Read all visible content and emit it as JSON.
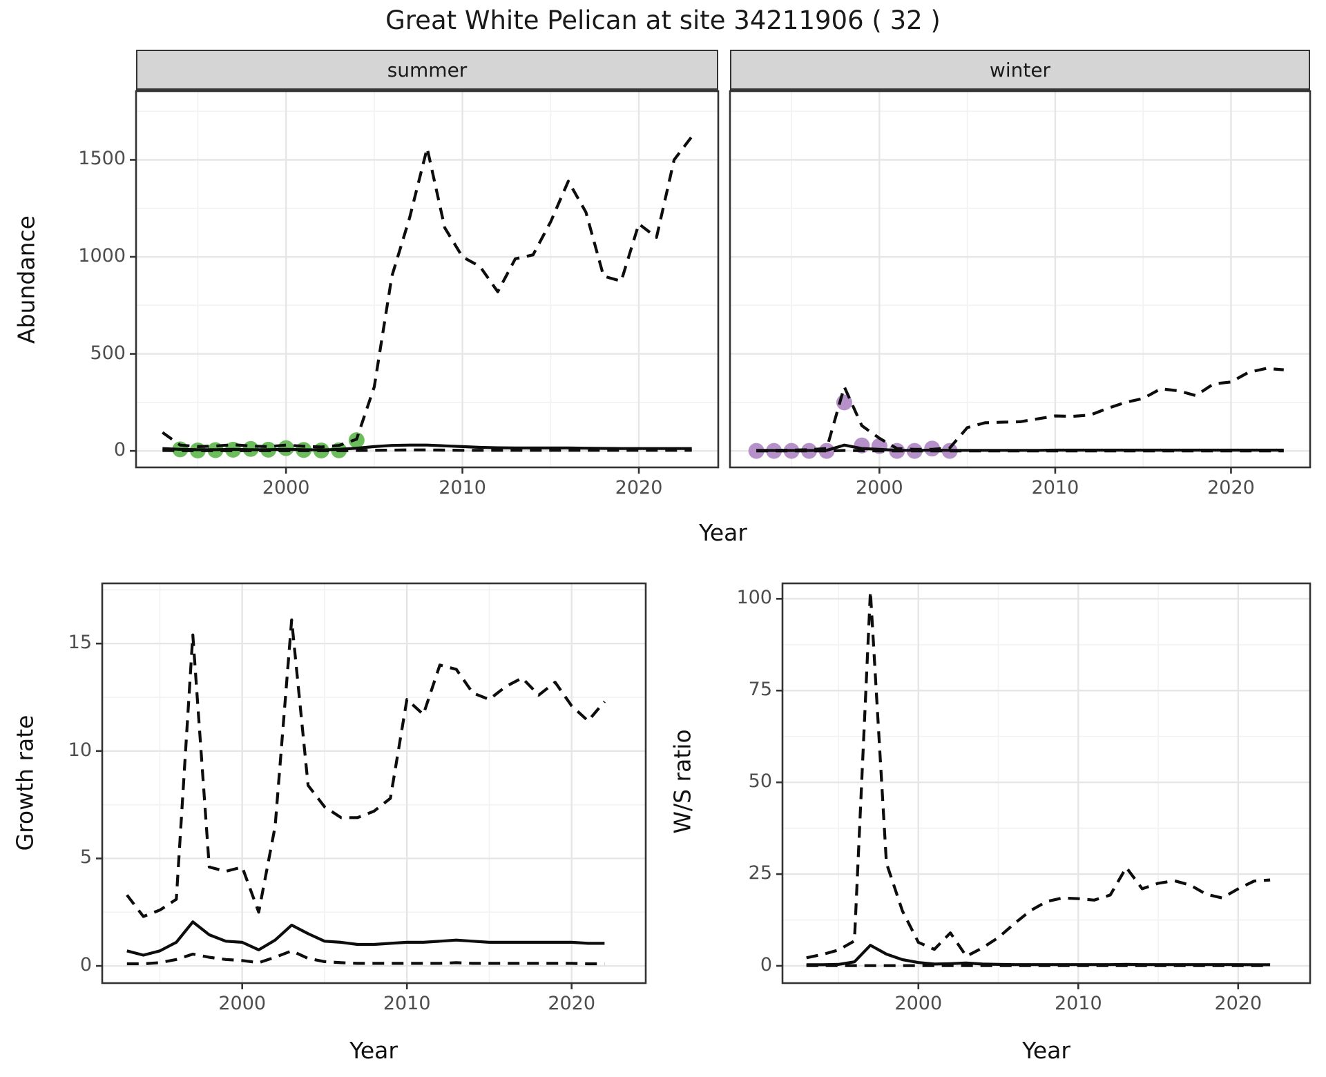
{
  "title": "Great White Pelican at site 34211906 ( 32 )",
  "colors": {
    "summer_points": "#6cbd5c",
    "winter_points": "#b691c9",
    "line": "#0d0d0d",
    "strip_bg": "#d5d5d5",
    "grid_major": "#e6e6e6",
    "grid_minor": "#f2f2f2",
    "panel_border": "#333333",
    "tick_text": "#4d4d4d"
  },
  "axis": {
    "y_label_top": "Abundance",
    "y_label_growth": "Growth rate",
    "y_label_ws": "W/S ratio",
    "x_label_top": "Year",
    "x_label_growth": "Year",
    "x_label_ws": "Year"
  },
  "chart_data": [
    {
      "id": "abundance_summer",
      "type": "line",
      "facet_label": "summer",
      "xlabel": "Year",
      "ylabel": "Abundance",
      "xlim": [
        1991.5,
        2024.5
      ],
      "ylim": [
        -85,
        1854
      ],
      "x_ticks": [
        2000,
        2010,
        2020
      ],
      "x_minor": [
        1995,
        2005,
        2015
      ],
      "y_ticks": [
        0,
        500,
        1000,
        1500
      ],
      "y_minor": [
        250,
        750,
        1250,
        1750
      ],
      "x": [
        1993,
        1994,
        1995,
        1996,
        1997,
        1998,
        1999,
        2000,
        2001,
        2002,
        2003,
        2004,
        2005,
        2006,
        2007,
        2008,
        2009,
        2010,
        2011,
        2012,
        2013,
        2014,
        2015,
        2016,
        2017,
        2018,
        2019,
        2020,
        2021,
        2022,
        2023
      ],
      "series": [
        {
          "name": "upper_ci",
          "style": "dashed",
          "values": [
            95,
            30,
            22,
            25,
            32,
            25,
            22,
            30,
            24,
            20,
            28,
            60,
            330,
            900,
            1200,
            1560,
            1150,
            1000,
            950,
            820,
            990,
            1010,
            1180,
            1390,
            1230,
            900,
            875,
            1170,
            1100,
            1500,
            1620
          ]
        },
        {
          "name": "mean",
          "style": "solid",
          "values": [
            12,
            8,
            6,
            6,
            8,
            6,
            6,
            8,
            6,
            5,
            8,
            14,
            22,
            28,
            30,
            30,
            26,
            22,
            18,
            16,
            15,
            15,
            15,
            15,
            14,
            13,
            12,
            12,
            12,
            12,
            12
          ]
        },
        {
          "name": "lower_ci",
          "style": "dashed",
          "values": [
            2,
            1,
            1,
            1,
            1,
            1,
            1,
            1,
            1,
            1,
            1,
            2,
            3,
            4,
            5,
            5,
            4,
            3,
            3,
            3,
            3,
            3,
            3,
            3,
            3,
            3,
            3,
            3,
            3,
            3,
            3
          ]
        }
      ],
      "points": {
        "name": "summer_observations",
        "color_key": "summer_points",
        "x": [
          1994,
          1995,
          1996,
          1997,
          1998,
          1999,
          2000,
          2001,
          2002,
          2003,
          2004
        ],
        "y": [
          8,
          2,
          4,
          6,
          10,
          6,
          14,
          5,
          2,
          3,
          55
        ]
      }
    },
    {
      "id": "abundance_winter",
      "type": "line",
      "facet_label": "winter",
      "xlabel": "Year",
      "ylabel": "Abundance",
      "xlim": [
        1991.5,
        2024.5
      ],
      "ylim": [
        -85,
        1854
      ],
      "x_ticks": [
        2000,
        2010,
        2020
      ],
      "x_minor": [
        1995,
        2005,
        2015
      ],
      "y_ticks": [
        0,
        500,
        1000,
        1500
      ],
      "y_minor": [
        250,
        750,
        1250,
        1750
      ],
      "x": [
        1993,
        1994,
        1995,
        1996,
        1997,
        1998,
        1999,
        2000,
        2001,
        2002,
        2003,
        2004,
        2005,
        2006,
        2007,
        2008,
        2009,
        2010,
        2011,
        2012,
        2013,
        2014,
        2015,
        2016,
        2017,
        2018,
        2019,
        2020,
        2021,
        2022,
        2023
      ],
      "series": [
        {
          "name": "upper_ci",
          "style": "dashed",
          "values": [
            2,
            3,
            4,
            6,
            12,
            330,
            130,
            65,
            12,
            8,
            8,
            15,
            120,
            145,
            148,
            150,
            165,
            180,
            178,
            185,
            220,
            250,
            270,
            320,
            310,
            285,
            345,
            355,
            405,
            425,
            418
          ]
        },
        {
          "name": "mean",
          "style": "solid",
          "values": [
            2,
            2,
            2,
            2,
            3,
            30,
            12,
            8,
            3,
            3,
            4,
            3,
            3,
            3,
            3,
            3,
            3,
            4,
            4,
            4,
            4,
            4,
            4,
            4,
            4,
            4,
            4,
            4,
            4,
            4,
            4
          ]
        },
        {
          "name": "lower_ci",
          "style": "dashed",
          "values": [
            0,
            0,
            0,
            0,
            0,
            2,
            1,
            0,
            0,
            0,
            0,
            0,
            0,
            0,
            0,
            0,
            0,
            0,
            0,
            0,
            0,
            0,
            0,
            0,
            0,
            0,
            0,
            0,
            0,
            0,
            0
          ]
        }
      ],
      "points": {
        "name": "winter_observations",
        "color_key": "winter_points",
        "x": [
          1993,
          1994,
          1995,
          1996,
          1997,
          1998,
          1999,
          2000,
          2001,
          2002,
          2003,
          2004
        ],
        "y": [
          0,
          0,
          0,
          0,
          0,
          250,
          28,
          25,
          0,
          0,
          12,
          0
        ]
      }
    },
    {
      "id": "growth_rate",
      "type": "line",
      "facet_label": "",
      "xlabel": "Year",
      "ylabel": "Growth rate",
      "xlim": [
        1991.5,
        2024.5
      ],
      "ylim": [
        -0.8,
        17.8
      ],
      "x_ticks": [
        2000,
        2010,
        2020
      ],
      "x_minor": [
        1995,
        2005,
        2015
      ],
      "y_ticks": [
        0,
        5,
        10,
        15
      ],
      "y_minor": [
        2.5,
        7.5,
        12.5,
        17.5
      ],
      "x": [
        1993,
        1994,
        1995,
        1996,
        1997,
        1998,
        1999,
        2000,
        2001,
        2002,
        2003,
        2004,
        2005,
        2006,
        2007,
        2008,
        2009,
        2010,
        2011,
        2012,
        2013,
        2014,
        2015,
        2016,
        2017,
        2018,
        2019,
        2020,
        2021,
        2022
      ],
      "series": [
        {
          "name": "upper_ci",
          "style": "dashed",
          "values": [
            3.3,
            2.3,
            2.6,
            3.1,
            15.4,
            4.6,
            4.4,
            4.6,
            2.5,
            6.5,
            16.1,
            8.4,
            7.4,
            6.9,
            6.9,
            7.2,
            7.8,
            12.4,
            11.7,
            14.0,
            13.8,
            12.7,
            12.4,
            13.0,
            13.4,
            12.6,
            13.2,
            12.1,
            11.4,
            12.3
          ]
        },
        {
          "name": "mean",
          "style": "solid",
          "values": [
            0.7,
            0.5,
            0.7,
            1.1,
            2.05,
            1.45,
            1.15,
            1.1,
            0.75,
            1.2,
            1.9,
            1.5,
            1.15,
            1.1,
            1.0,
            1.0,
            1.05,
            1.1,
            1.1,
            1.15,
            1.2,
            1.15,
            1.1,
            1.1,
            1.1,
            1.1,
            1.1,
            1.1,
            1.05,
            1.05
          ]
        },
        {
          "name": "lower_ci",
          "style": "dashed",
          "values": [
            0.1,
            0.1,
            0.15,
            0.3,
            0.55,
            0.4,
            0.3,
            0.25,
            0.15,
            0.4,
            0.7,
            0.35,
            0.2,
            0.15,
            0.12,
            0.12,
            0.12,
            0.12,
            0.12,
            0.12,
            0.15,
            0.12,
            0.12,
            0.12,
            0.12,
            0.12,
            0.12,
            0.12,
            0.1,
            0.1
          ]
        }
      ],
      "points": null
    },
    {
      "id": "ws_ratio",
      "type": "line",
      "facet_label": "",
      "xlabel": "Year",
      "ylabel": "W/S ratio",
      "xlim": [
        1991.5,
        2024.5
      ],
      "ylim": [
        -4.7,
        104.2
      ],
      "x_ticks": [
        2000,
        2010,
        2020
      ],
      "x_minor": [
        1995,
        2005,
        2015
      ],
      "y_ticks": [
        0,
        25,
        50,
        75,
        100
      ],
      "y_minor": [
        12.5,
        37.5,
        62.5,
        87.5
      ],
      "x": [
        1993,
        1994,
        1995,
        1996,
        1997,
        1998,
        1999,
        2000,
        2001,
        2002,
        2003,
        2004,
        2005,
        2006,
        2007,
        2008,
        2009,
        2010,
        2011,
        2012,
        2013,
        2014,
        2015,
        2016,
        2017,
        2018,
        2019,
        2020,
        2021,
        2022
      ],
      "series": [
        {
          "name": "upper_ci",
          "style": "dashed",
          "values": [
            2.2,
            3.1,
            4.3,
            6.8,
            102,
            28,
            15,
            6.4,
            4.5,
            9.0,
            2.6,
            4.9,
            7.7,
            11.5,
            15.0,
            17.5,
            18.5,
            18.3,
            17.9,
            19.3,
            26.8,
            21.0,
            22.5,
            23.2,
            22.0,
            19.5,
            18.5,
            21.0,
            23.1,
            23.4
          ]
        },
        {
          "name": "mean",
          "style": "solid",
          "values": [
            0.3,
            0.3,
            0.4,
            1.1,
            5.6,
            3.2,
            1.7,
            0.9,
            0.5,
            0.6,
            0.8,
            0.5,
            0.4,
            0.35,
            0.35,
            0.35,
            0.35,
            0.35,
            0.35,
            0.35,
            0.4,
            0.35,
            0.35,
            0.35,
            0.35,
            0.35,
            0.35,
            0.35,
            0.3,
            0.3
          ]
        },
        {
          "name": "lower_ci",
          "style": "dashed",
          "values": [
            0.05,
            0.05,
            0.05,
            0.05,
            0.05,
            0.05,
            0.05,
            0.05,
            0.05,
            0.05,
            0.05,
            0.05,
            0.05,
            0.05,
            0.05,
            0.05,
            0.05,
            0.05,
            0.05,
            0.05,
            0.05,
            0.05,
            0.05,
            0.05,
            0.05,
            0.05,
            0.05,
            0.05,
            0.05,
            0.05
          ]
        }
      ],
      "points": null
    }
  ]
}
